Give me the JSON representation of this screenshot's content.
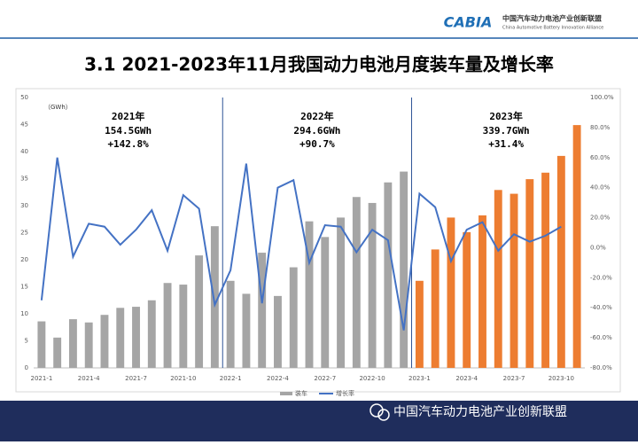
{
  "header": {
    "logo": "CABIA",
    "org_cn": "中国汽车动力电池产业创新联盟",
    "org_en": "China Automotive Battery Innovation Alliance"
  },
  "footer": {
    "text": "中国汽车动力电池产业创新联盟"
  },
  "chart_data": {
    "type": "bar-line",
    "title": "3.1 2021-2023年11月我国动力电池月度装车量及增长率",
    "y_unit": "（GWh）",
    "categories": [
      "2021-1",
      null,
      null,
      "2021-4",
      null,
      null,
      "2021-7",
      null,
      null,
      "2021-10",
      null,
      null,
      "2022-1",
      null,
      null,
      "2022-4",
      null,
      null,
      "2022-7",
      null,
      null,
      "2022-10",
      null,
      null,
      "2023-1",
      null,
      null,
      "2023-4",
      null,
      null,
      "2023-7",
      null,
      null,
      "2023-10",
      null
    ],
    "periods": [
      {
        "label": "2021年",
        "total": "154.5GWh",
        "growth": "+142.8%",
        "color": "#a5a5a5"
      },
      {
        "label": "2022年",
        "total": "294.6GWh",
        "growth": "+90.7%",
        "color": "#a5a5a5"
      },
      {
        "label": "2023年",
        "total": "339.7GWh",
        "growth": "+31.4%",
        "color": "#ed7d31"
      }
    ],
    "series": [
      {
        "name": "装车",
        "color": "#a5a5a5",
        "values": [
          8.6,
          5.6,
          9.0,
          8.4,
          9.8,
          11.1,
          11.3,
          12.5,
          15.7,
          15.4,
          20.8,
          26.2,
          16.1,
          13.7,
          21.3,
          13.3,
          18.6,
          27.1,
          24.2,
          27.8,
          31.6,
          30.5,
          34.3,
          36.3,
          16.1,
          21.9,
          27.8,
          25.1,
          28.2,
          32.9,
          32.2,
          34.9,
          36.1,
          39.2,
          44.9
        ]
      },
      {
        "name": "增长率",
        "color": "#4472c4",
        "axis": "y2",
        "values": [
          -35,
          60,
          -6,
          16,
          14,
          2,
          12,
          25,
          -2,
          35,
          26,
          -38,
          -15,
          56,
          -37,
          40,
          45,
          -10,
          15,
          14,
          -3,
          12,
          5,
          -55,
          36,
          27,
          -9,
          12,
          17,
          -2,
          9,
          4,
          8,
          14,
          null
        ]
      }
    ],
    "ylim": [
      0,
      50
    ],
    "yticks": [
      0,
      5,
      10,
      15,
      20,
      25,
      30,
      35,
      40,
      45,
      50
    ],
    "y2lim": [
      -80,
      100
    ],
    "y2ticks": [
      {
        "value": -80,
        "label": "-80.0%"
      },
      {
        "value": -60,
        "label": "-60.0%"
      },
      {
        "value": -40,
        "label": "-40.0%"
      },
      {
        "value": -20,
        "label": "-20.0%"
      },
      {
        "value": 0,
        "label": "0.0%"
      },
      {
        "value": 20,
        "label": "20.0%"
      },
      {
        "value": 40,
        "label": "40.0%"
      },
      {
        "value": 60,
        "label": "60.0%"
      },
      {
        "value": 80,
        "label": "80.0%"
      },
      {
        "value": 100,
        "label": "100.0%"
      }
    ],
    "grid": false,
    "legend": "bottom"
  }
}
